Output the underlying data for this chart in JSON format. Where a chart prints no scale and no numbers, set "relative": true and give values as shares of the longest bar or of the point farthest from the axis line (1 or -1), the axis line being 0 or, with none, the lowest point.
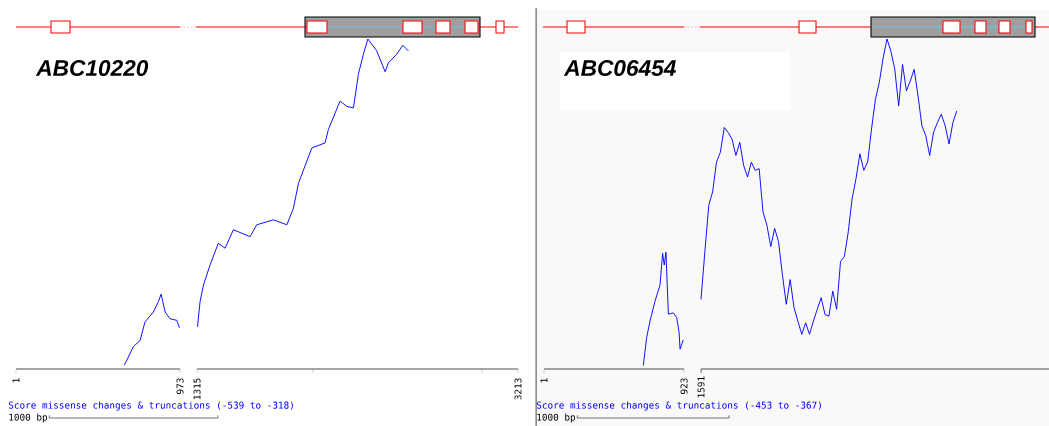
{
  "chart_data": [
    {
      "type": "line",
      "title": "ABC10220",
      "relative": true,
      "xlim": [
        1,
        973
      ],
      "xticks": [
        1,
        973
      ],
      "series": [
        {
          "color": "#0000ff",
          "x": [
            643,
            697,
            736,
            766,
            815,
            845,
            861,
            885,
            914,
            954,
            970
          ],
          "values": [
            0.05,
            0.3,
            0.38,
            0.63,
            0.76,
            0.9,
            1.0,
            0.76,
            0.67,
            0.65,
            0.55
          ]
        }
      ],
      "annotations": [
        "Score missense changes & truncations (-539 to -318)",
        "1000 bp"
      ]
    },
    {
      "type": "line",
      "relative": true,
      "xlim": [
        1315,
        3213
      ],
      "xticks": [
        1315,
        {
          "value": 2000,
          "label": null
        },
        {
          "value": 3000,
          "label": null
        },
        3213
      ],
      "series": [
        {
          "color": "#0000ff",
          "x": [
            1318,
            1333,
            1353,
            1392,
            1441,
            1481,
            1530,
            1629,
            1668,
            1767,
            1846,
            1885,
            1915,
            1994,
            2072,
            2092,
            2132,
            2161,
            2200,
            2240,
            2269,
            2299,
            2325,
            2378,
            2427,
            2447,
            2496,
            2532,
            2565
          ],
          "values": [
            0.128,
            0.204,
            0.254,
            0.315,
            0.381,
            0.366,
            0.422,
            0.401,
            0.437,
            0.452,
            0.437,
            0.487,
            0.563,
            0.67,
            0.685,
            0.726,
            0.776,
            0.812,
            0.796,
            0.791,
            0.893,
            0.954,
            1.0,
            0.964,
            0.901,
            0.928,
            0.954,
            0.981,
            0.964
          ]
        }
      ]
    },
    {
      "type": "line",
      "title": "ABC06454",
      "relative": true,
      "xlim": [
        1,
        923
      ],
      "xticks": [
        1,
        923
      ],
      "series": [
        {
          "color": "#0000ff",
          "x": [
            655,
            677,
            699,
            732,
            765,
            782,
            793,
            804,
            820,
            853,
            875,
            890,
            897,
            918
          ],
          "values": [
            0.03,
            0.27,
            0.41,
            0.58,
            0.72,
            0.99,
            0.89,
            1.0,
            0.47,
            0.48,
            0.44,
            0.32,
            0.17,
            0.25
          ]
        }
      ],
      "annotations": [
        "Score missense changes & truncations (-453 to -367)",
        "1000 bp"
      ]
    },
    {
      "type": "line",
      "relative": true,
      "categories": [
        null,
        null,
        null,
        null,
        null,
        null,
        null,
        null,
        null,
        null,
        null,
        null,
        null,
        null,
        null,
        null,
        null,
        null,
        null,
        null,
        null,
        null,
        null,
        null,
        null,
        null,
        null,
        null,
        null,
        null,
        null,
        null,
        null,
        null,
        null,
        null,
        null,
        null,
        null,
        null,
        null,
        null,
        null,
        null,
        null,
        null,
        null,
        null,
        null,
        null,
        null,
        null,
        null,
        null,
        null,
        null,
        null,
        null,
        null,
        null,
        null,
        null,
        null,
        null,
        null,
        null,
        null
      ],
      "series": [
        {
          "color": "#0000ff",
          "values": [
            0.211,
            0.356,
            0.496,
            0.537,
            0.627,
            0.657,
            0.732,
            0.717,
            0.697,
            0.647,
            0.687,
            0.617,
            0.582,
            0.627,
            0.602,
            0.607,
            0.476,
            0.436,
            0.371,
            0.426,
            0.386,
            0.286,
            0.196,
            0.271,
            0.186,
            0.145,
            0.105,
            0.14,
            0.105,
            0.145,
            0.181,
            0.216,
            0.165,
            0.16,
            0.236,
            0.181,
            0.326,
            0.341,
            0.416,
            0.517,
            0.577,
            0.652,
            0.602,
            0.627,
            0.727,
            0.817,
            0.868,
            0.943,
            1.0,
            0.963,
            0.908,
            0.797,
            0.923,
            0.843,
            0.873,
            0.908,
            0.827,
            0.737,
            0.707,
            0.647,
            0.717,
            0.747,
            0.772,
            0.737,
            0.682,
            0.747,
            0.782
          ]
        }
      ],
      "annotations": [
        "1591"
      ]
    }
  ]
}
